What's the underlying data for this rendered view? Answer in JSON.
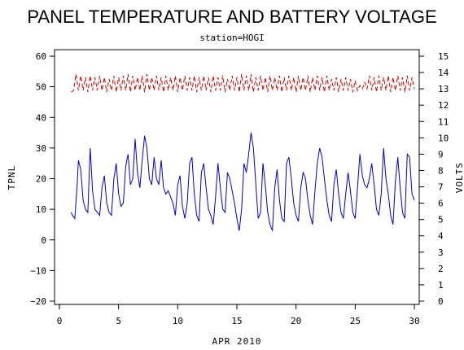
{
  "chart_data": {
    "type": "line",
    "title": "PANEL TEMPERATURE AND BATTERY VOLTAGE",
    "subtitle": "station=HOGI",
    "xlabel": "APR 2010",
    "ylabel_left": "TPNL",
    "ylabel_right": "VOLTS",
    "xlim": [
      0,
      30
    ],
    "ylim_left": [
      -20,
      60
    ],
    "ylim_right": [
      0,
      15
    ],
    "x_ticks": [
      0,
      5,
      10,
      15,
      20,
      25,
      30
    ],
    "y_ticks_left": [
      -20,
      -10,
      0,
      10,
      20,
      30,
      40,
      50,
      60
    ],
    "y_ticks_right": [
      0,
      1,
      2,
      3,
      4,
      5,
      6,
      7,
      8,
      9,
      10,
      11,
      12,
      13,
      14,
      15
    ],
    "grid": false,
    "series": [
      {
        "axis": "left",
        "color": "#0000cc",
        "style": "solid",
        "x": [
          1.0,
          1.1,
          1.3,
          1.5,
          1.6,
          1.8,
          2.0,
          2.2,
          2.4,
          2.6,
          2.8,
          3.0,
          3.2,
          3.4,
          3.6,
          3.8,
          4.0,
          4.2,
          4.4,
          4.6,
          4.8,
          5.0,
          5.2,
          5.4,
          5.6,
          5.8,
          6.0,
          6.2,
          6.4,
          6.6,
          6.8,
          7.0,
          7.2,
          7.4,
          7.6,
          7.8,
          8.0,
          8.2,
          8.4,
          8.6,
          8.8,
          9.0,
          9.2,
          9.4,
          9.6,
          9.8,
          10.0,
          10.2,
          10.4,
          10.6,
          10.8,
          11.0,
          11.2,
          11.4,
          11.6,
          11.8,
          12.0,
          12.2,
          12.4,
          12.6,
          12.8,
          13.0,
          13.2,
          13.4,
          13.6,
          13.8,
          14.0,
          14.2,
          14.4,
          14.6,
          14.8,
          15.0,
          15.2,
          15.4,
          15.6,
          15.8,
          16.0,
          16.2,
          16.4,
          16.6,
          16.8,
          17.0,
          17.2,
          17.4,
          17.6,
          17.8,
          18.0,
          18.2,
          18.4,
          18.6,
          18.8,
          19.0,
          19.2,
          19.4,
          19.6,
          19.8,
          20.0,
          20.2,
          20.4,
          20.6,
          20.8,
          21.0,
          21.2,
          21.4,
          21.6,
          21.8,
          22.0,
          22.2,
          22.4,
          22.6,
          22.8,
          23.0,
          23.2,
          23.4,
          23.6,
          23.8,
          24.0,
          24.2,
          24.4,
          24.6,
          24.8,
          25.0,
          25.2,
          25.4,
          25.6,
          25.8,
          26.0,
          26.2,
          26.4,
          26.6,
          26.8,
          27.0,
          27.2,
          27.4,
          27.6,
          27.8,
          28.0,
          28.2,
          28.4,
          28.6,
          28.8,
          29.0,
          29.2,
          29.4,
          29.6,
          29.8,
          30.0
        ],
        "values": [
          9,
          8,
          7,
          18,
          26,
          23,
          13,
          10,
          9,
          30,
          16,
          10,
          9,
          8,
          17,
          21,
          12,
          9,
          8,
          20,
          25,
          15,
          11,
          12,
          24,
          28,
          18,
          20,
          33,
          22,
          17,
          26,
          34,
          30,
          20,
          18,
          27,
          20,
          18,
          26,
          17,
          15,
          16,
          14,
          12,
          8,
          18,
          21,
          11,
          7,
          12,
          25,
          27,
          15,
          8,
          6,
          22,
          25,
          17,
          10,
          8,
          5,
          14,
          25,
          17,
          10,
          9,
          22,
          20,
          16,
          12,
          7,
          3,
          10,
          25,
          22,
          28,
          35,
          30,
          18,
          7,
          9,
          25,
          18,
          9,
          5,
          3,
          17,
          23,
          13,
          7,
          6,
          25,
          27,
          20,
          12,
          8,
          6,
          17,
          22,
          20,
          13,
          8,
          5,
          16,
          25,
          30,
          27,
          20,
          13,
          8,
          6,
          18,
          23,
          15,
          9,
          7,
          15,
          22,
          16,
          9,
          7,
          17,
          28,
          21,
          18,
          17,
          20,
          25,
          18,
          10,
          8,
          15,
          30,
          20,
          15,
          8,
          5,
          19,
          27,
          17,
          9,
          7,
          28,
          27,
          15,
          13
        ]
      },
      {
        "axis": "right",
        "color": "#cc0000",
        "style": "dashed",
        "x": [
          1.0,
          1.2,
          1.4,
          1.6,
          1.8,
          2.0,
          2.2,
          2.4,
          2.6,
          2.8,
          3.0,
          3.2,
          3.4,
          3.6,
          3.8,
          4.0,
          4.2,
          4.4,
          4.6,
          4.8,
          5.0,
          5.2,
          5.4,
          5.6,
          5.8,
          6.0,
          6.2,
          6.4,
          6.6,
          6.8,
          7.0,
          7.2,
          7.4,
          7.6,
          7.8,
          8.0,
          8.2,
          8.4,
          8.6,
          8.8,
          9.0,
          9.2,
          9.4,
          9.6,
          9.8,
          10.0,
          10.2,
          10.4,
          10.6,
          10.8,
          11.0,
          11.2,
          11.4,
          11.6,
          11.8,
          12.0,
          12.2,
          12.4,
          12.6,
          12.8,
          13.0,
          13.2,
          13.4,
          13.6,
          13.8,
          14.0,
          14.2,
          14.4,
          14.6,
          14.8,
          15.0,
          15.2,
          15.4,
          15.6,
          15.8,
          16.0,
          16.2,
          16.4,
          16.6,
          16.8,
          17.0,
          17.2,
          17.4,
          17.6,
          17.8,
          18.0,
          18.2,
          18.4,
          18.6,
          18.8,
          19.0,
          19.2,
          19.4,
          19.6,
          19.8,
          20.0,
          20.2,
          20.4,
          20.6,
          20.8,
          21.0,
          21.2,
          21.4,
          21.6,
          21.8,
          22.0,
          22.2,
          22.4,
          22.6,
          22.8,
          23.0,
          23.2,
          23.4,
          23.6,
          23.8,
          24.0,
          24.2,
          24.4,
          24.6,
          24.8,
          25.0,
          25.2,
          25.4,
          25.6,
          25.8,
          26.0,
          26.2,
          26.4,
          26.6,
          26.8,
          27.0,
          27.2,
          27.4,
          27.6,
          27.8,
          28.0,
          28.2,
          28.4,
          28.6,
          28.8,
          29.0,
          29.2,
          29.4,
          29.6,
          29.8,
          30.0
        ],
        "values": [
          12.8,
          12.9,
          13.9,
          12.9,
          13.8,
          12.9,
          13.7,
          12.8,
          13.8,
          12.9,
          13.7,
          12.9,
          13.8,
          12.9,
          13.7,
          12.8,
          13.6,
          12.9,
          13.8,
          12.8,
          13.7,
          12.9,
          13.8,
          12.9,
          13.9,
          12.8,
          13.8,
          12.9,
          13.7,
          12.9,
          13.8,
          12.8,
          13.9,
          12.9,
          13.7,
          12.9,
          13.8,
          12.9,
          13.7,
          12.8,
          13.8,
          12.9,
          13.7,
          12.9,
          13.8,
          12.8,
          13.7,
          12.9,
          13.8,
          12.9,
          13.7,
          12.9,
          13.8,
          12.8,
          13.7,
          12.9,
          13.8,
          12.9,
          13.7,
          12.8,
          13.8,
          12.9,
          13.7,
          12.9,
          13.8,
          12.8,
          13.6,
          12.9,
          13.8,
          12.9,
          13.7,
          12.8,
          13.9,
          12.9,
          13.8,
          12.9,
          13.9,
          12.8,
          13.7,
          12.9,
          13.8,
          12.9,
          13.7,
          12.8,
          13.8,
          12.9,
          13.7,
          12.9,
          13.8,
          12.8,
          13.7,
          12.9,
          13.8,
          12.9,
          13.7,
          12.8,
          13.8,
          12.9,
          13.7,
          12.9,
          13.8,
          12.8,
          13.7,
          12.9,
          13.8,
          12.9,
          13.7,
          12.8,
          13.8,
          12.9,
          13.6,
          12.9,
          13.7,
          12.8,
          13.6,
          12.9,
          13.7,
          12.9,
          13.6,
          12.8,
          13.5,
          12.9,
          13.2,
          13.0,
          13.4,
          13.0,
          13.8,
          12.9,
          13.7,
          12.8,
          13.8,
          12.9,
          13.7,
          12.9,
          13.8,
          12.8,
          13.7,
          12.9,
          13.8,
          12.9,
          13.7,
          12.8,
          13.8,
          12.9,
          13.7,
          13.0
        ]
      }
    ]
  }
}
